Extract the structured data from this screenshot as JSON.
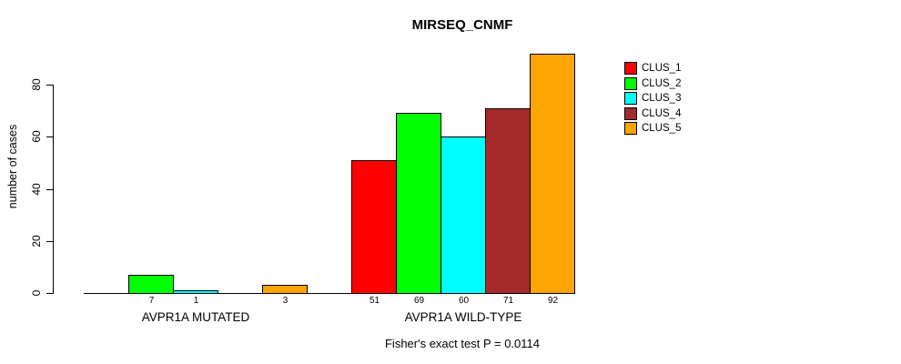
{
  "page": {
    "background": "#ffffff",
    "text_color": "#000000"
  },
  "chart_data": {
    "type": "bar",
    "title": "MIRSEQ_CNMF",
    "ylabel": "number of cases",
    "xlabel": "",
    "ylim": [
      0,
      92
    ],
    "yticks": [
      0,
      20,
      40,
      60,
      80
    ],
    "grid": false,
    "legend_position": "right",
    "groups": [
      "AVPR1A MUTATED",
      "AVPR1A WILD-TYPE"
    ],
    "series": [
      {
        "name": "CLUS_1",
        "color": "#ff0000",
        "values": [
          0,
          51
        ]
      },
      {
        "name": "CLUS_2",
        "color": "#00ff00",
        "values": [
          7,
          69
        ]
      },
      {
        "name": "CLUS_3",
        "color": "#00ffff",
        "values": [
          1,
          60
        ]
      },
      {
        "name": "CLUS_4",
        "color": "#a52a2a",
        "values": [
          0,
          71
        ]
      },
      {
        "name": "CLUS_5",
        "color": "#ffa500",
        "values": [
          3,
          92
        ]
      }
    ],
    "bar_value_labels_shown": {
      "AVPR1A MUTATED": [
        "",
        "7",
        "1",
        "",
        "3"
      ],
      "AVPR1A WILD-TYPE": [
        "51",
        "69",
        "60",
        "71",
        "92"
      ]
    },
    "annotation": "Fisher's exact test P = 0.0114"
  }
}
